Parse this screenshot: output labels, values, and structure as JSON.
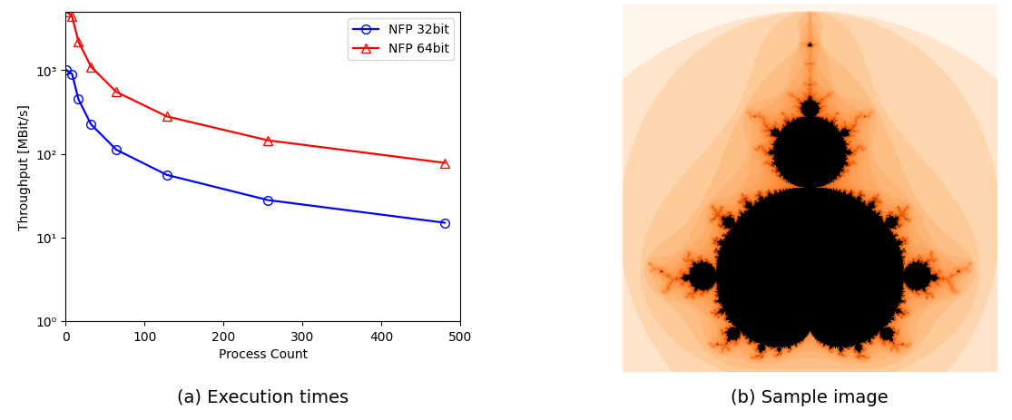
{
  "chart_data": [
    {
      "type": "line",
      "caption": "(a) Execution times",
      "x_label": "Process Count",
      "y_label": "Throughput [MBit/s]",
      "log": "y",
      "legend": "upper right",
      "xlim": [
        0,
        500
      ],
      "xticks": [
        0,
        100,
        200,
        300,
        400,
        500
      ],
      "ylim": [
        1,
        5000
      ],
      "yticks": [
        {
          "value": 1,
          "label": "10⁰"
        },
        {
          "value": 10,
          "label": "10¹"
        },
        {
          "value": 100,
          "label": "10²"
        },
        {
          "value": 1000,
          "label": "10³"
        }
      ],
      "x": [
        1,
        8,
        16,
        32,
        64,
        128,
        256,
        480
      ],
      "series": [
        {
          "name": "NFP 32bit",
          "color": "#0000ff",
          "marker": "circle",
          "values": [
            1000,
            900,
            450,
            225,
            112,
            56,
            28,
            15
          ]
        },
        {
          "name": "NFP 64bit",
          "color": "#ff0000",
          "marker": "triangle",
          "values": [
            5000,
            4400,
            2200,
            1100,
            550,
            280,
            145,
            78
          ]
        }
      ]
    },
    {
      "type": "image",
      "caption": "(b) Sample image"
    }
  ]
}
